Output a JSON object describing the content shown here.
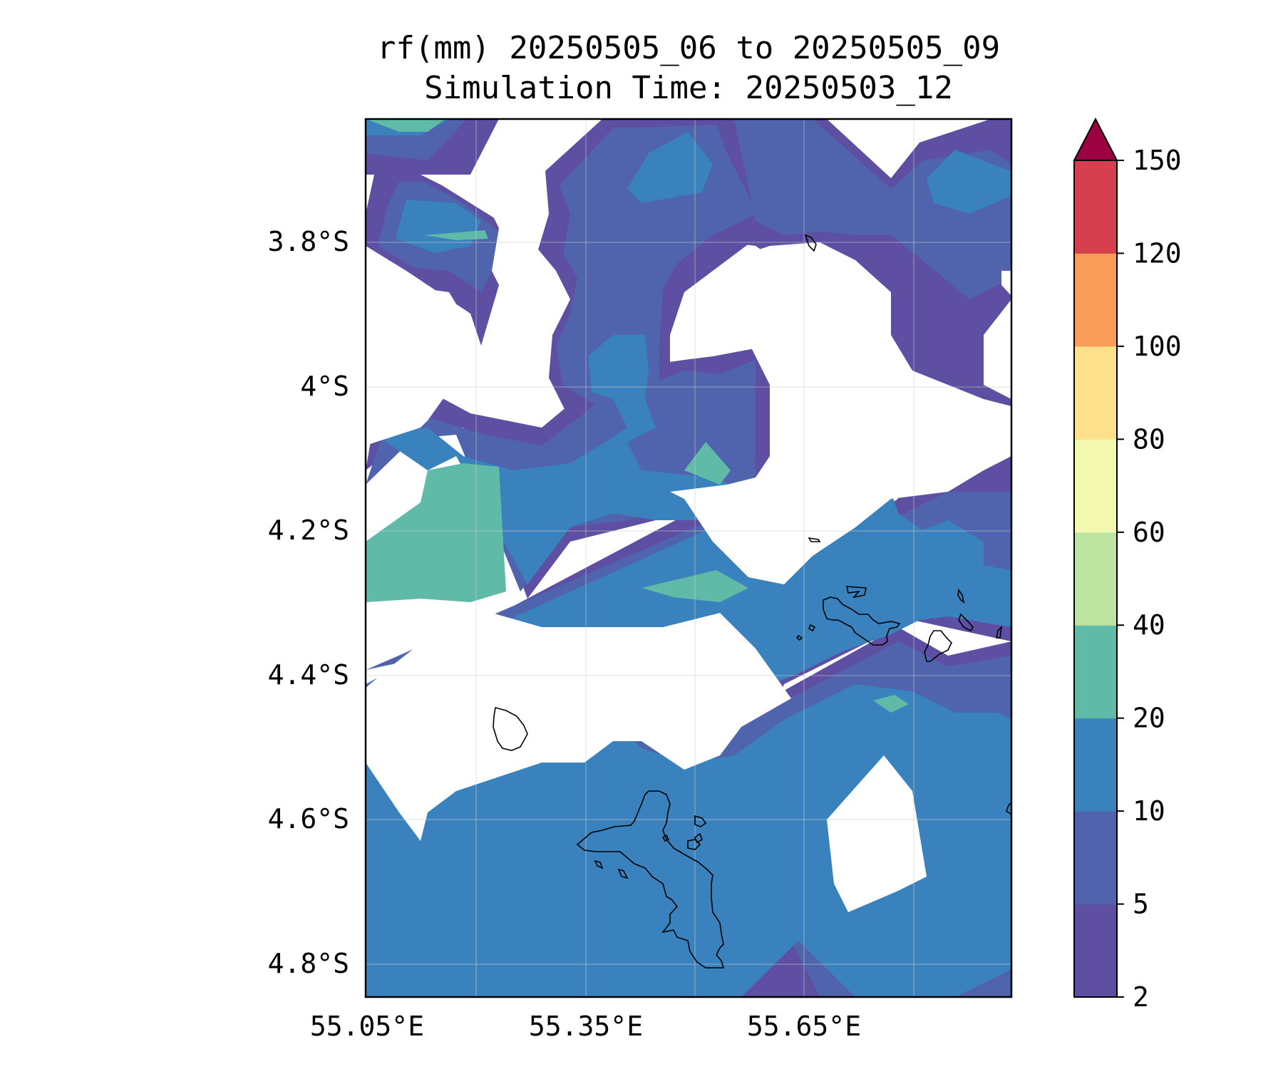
{
  "title": {
    "line1": "rf(mm) 20250505_06 to 20250505_09",
    "line2": "Simulation Time: 20250503_12"
  },
  "map": {
    "lat_ticks": [
      "3.8°S",
      "4°S",
      "4.2°S",
      "4.4°S",
      "4.6°S",
      "4.8°S"
    ],
    "lon_ticks": [
      "55.05°E",
      "55.35°E",
      "55.65°E"
    ]
  },
  "colorbar": {
    "levels": [
      "2",
      "5",
      "10",
      "20",
      "40",
      "60",
      "80",
      "100",
      "120",
      "150"
    ],
    "colors": [
      "#5e4fa2",
      "#4f64ad",
      "#3a82bd",
      "#5fbaa8",
      "#bde3a0",
      "#f2f8ad",
      "#fde08b",
      "#f99d59",
      "#d6404e"
    ],
    "extend_color": "#9e0142",
    "extend": "max"
  }
}
